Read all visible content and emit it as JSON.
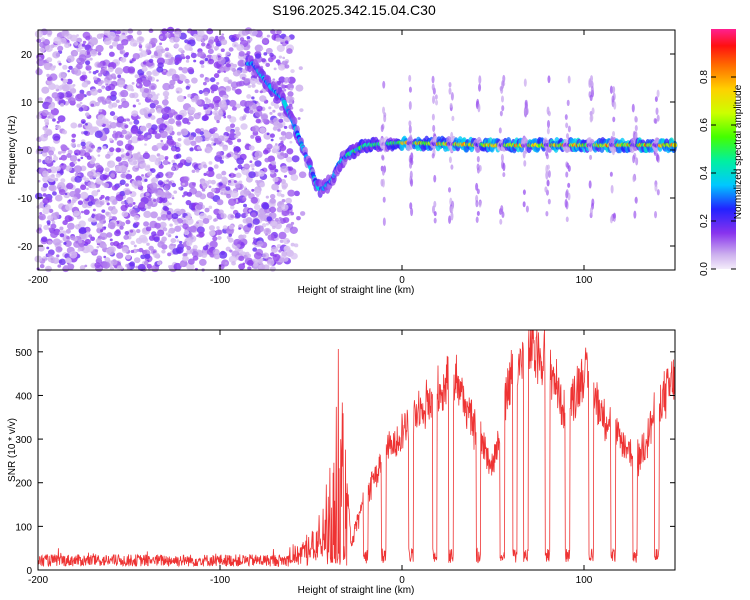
{
  "title": "S196.2025.342.15.04.C30",
  "chart_data": [
    {
      "type": "heatmap",
      "name": "spectrogram",
      "xlabel": "Height of straight line (km)",
      "ylabel": "Frequency (Hz)",
      "xlim": [
        -200,
        150
      ],
      "ylim": [
        -25,
        25
      ],
      "xticks": [
        -200,
        -100,
        0,
        100
      ],
      "yticks": [
        -20,
        -10,
        0,
        10,
        20
      ],
      "colorbar": {
        "label": "Normalized spectral amplitude",
        "range": [
          0,
          1
        ],
        "ticks": [
          "0.0",
          "0.2",
          "0.4",
          "0.6",
          "0.8"
        ],
        "tick_values": [
          0,
          0.2,
          0.4,
          0.6,
          0.8
        ]
      },
      "track": [
        [
          -82,
          18
        ],
        [
          -72,
          13
        ],
        [
          -66,
          11
        ],
        [
          -60,
          6
        ],
        [
          -55,
          1
        ],
        [
          -50,
          -4
        ],
        [
          -46,
          -8
        ],
        [
          -43,
          -8
        ],
        [
          -38,
          -6
        ],
        [
          -35,
          -3
        ],
        [
          -30,
          -1
        ],
        [
          -20,
          1
        ],
        [
          0,
          1.5
        ],
        [
          50,
          1
        ],
        [
          100,
          1
        ],
        [
          150,
          1
        ]
      ],
      "notch_x": [
        -10,
        5,
        18,
        27,
        42,
        55,
        68,
        80,
        91,
        104,
        116,
        128,
        140
      ]
    },
    {
      "type": "line",
      "name": "snr",
      "xlabel": "Height of straight line (km)",
      "ylabel": "SNR (10 * v/v)",
      "xlim": [
        -200,
        150
      ],
      "ylim": [
        0,
        550
      ],
      "xticks": [
        -200,
        -100,
        0,
        100
      ],
      "yticks": [
        0,
        100,
        200,
        300,
        400,
        500
      ],
      "color": "#ee3333",
      "envelope": {
        "x": [
          -200,
          -70,
          -60,
          -45,
          -38,
          -35,
          -28,
          -20,
          -10,
          0,
          10,
          20,
          30,
          40,
          50,
          60,
          70,
          80,
          90,
          100,
          110,
          120,
          130,
          140,
          150
        ],
        "y": [
          20,
          22,
          35,
          120,
          250,
          500,
          60,
          180,
          260,
          330,
          380,
          420,
          450,
          330,
          250,
          460,
          520,
          500,
          360,
          470,
          370,
          300,
          260,
          380,
          450
        ]
      },
      "dips_x": [
        -20,
        -10,
        5,
        18,
        27,
        42,
        55,
        62,
        68,
        80,
        91,
        104,
        116,
        128,
        140
      ]
    }
  ]
}
